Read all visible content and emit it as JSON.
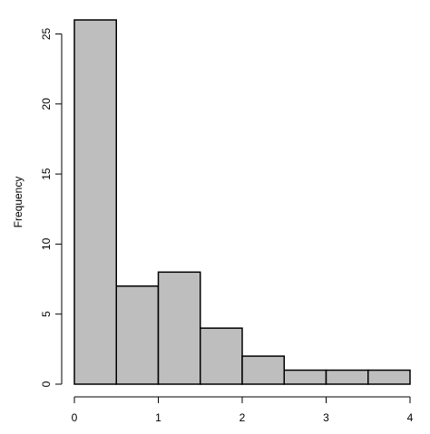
{
  "chart_data": {
    "type": "histogram",
    "y_label": "Frequency",
    "bins": [
      0,
      0.5,
      1,
      1.5,
      2,
      2.5,
      3,
      3.5,
      4
    ],
    "values": [
      26,
      7,
      8,
      4,
      2,
      1,
      1,
      1
    ],
    "color": "#bebebe",
    "xlim": [
      0,
      4
    ],
    "xticks": [
      0,
      1,
      2,
      3,
      4
    ],
    "ylim": [
      0,
      26
    ],
    "yticks": [
      0,
      5,
      10,
      15,
      20,
      25
    ],
    "grid": false
  }
}
